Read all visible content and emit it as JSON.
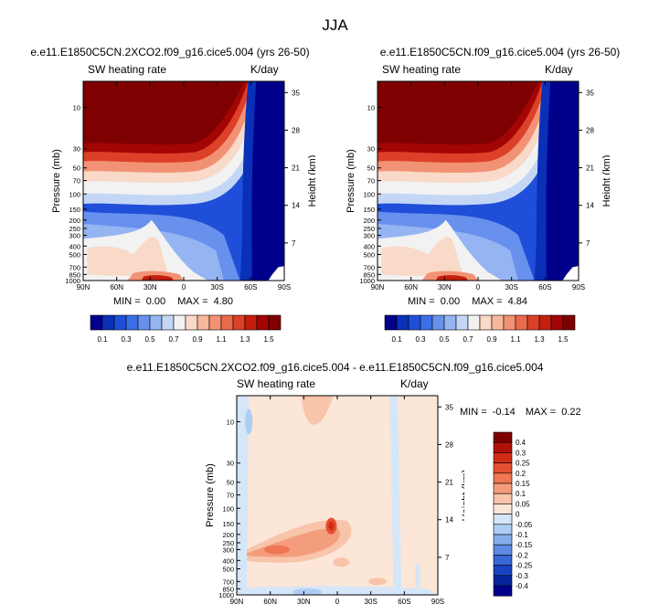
{
  "figure": {
    "title": "JJA",
    "colors": {
      "background": "#ffffff",
      "text": "#000000"
    }
  },
  "chart_data": [
    {
      "type": "heatmap",
      "title": "e.e11.E1850C5CN.2XCO2.f09_g16.cice5.004 (yrs 26-50)",
      "left_string": "SW heating rate",
      "units": "K/day",
      "ylabel": "Pressure (mb)",
      "ylabel_right": "Height (km)",
      "x_ticks": [
        "90N",
        "60N",
        "30N",
        "0",
        "30S",
        "60S",
        "90S"
      ],
      "y_ticks": [
        "10",
        "30",
        "50",
        "70",
        "100",
        "150",
        "200",
        "250",
        "300",
        "400",
        "500",
        "700",
        "850",
        "1000"
      ],
      "y_ticks_right": [
        "35",
        "28",
        "21",
        "14",
        "7"
      ],
      "stats": {
        "min_label": "MIN =",
        "min": "0.00",
        "max_label": "MAX =",
        "max": "4.80"
      },
      "colorbar": {
        "labels": [
          "0.1",
          "0.3",
          "0.5",
          "0.7",
          "0.9",
          "1.1",
          "1.3",
          "1.5"
        ],
        "colors": [
          "#00008b",
          "#0a30b8",
          "#1f4fd8",
          "#3b6fe6",
          "#6891ee",
          "#95b4f2",
          "#c3d6f6",
          "#f2f2f2",
          "#f9d9c8",
          "#f7b89e",
          "#f29274",
          "#ea6a4c",
          "#dc4028",
          "#c41e0e",
          "#a30505",
          "#7f0000"
        ]
      }
    },
    {
      "type": "heatmap",
      "title": "e.e11.E1850C5CN.f09_g16.cice5.004 (yrs 26-50)",
      "left_string": "SW heating rate",
      "units": "K/day",
      "ylabel": "Pressure (mb)",
      "ylabel_right": "Height (km)",
      "x_ticks": [
        "90N",
        "60N",
        "30N",
        "0",
        "30S",
        "60S",
        "90S"
      ],
      "y_ticks": [
        "10",
        "30",
        "50",
        "70",
        "100",
        "150",
        "200",
        "250",
        "300",
        "400",
        "500",
        "700",
        "850",
        "1000"
      ],
      "y_ticks_right": [
        "35",
        "28",
        "21",
        "14",
        "7"
      ],
      "stats": {
        "min_label": "MIN =",
        "min": "0.00",
        "max_label": "MAX =",
        "max": "4.84"
      },
      "colorbar": {
        "labels": [
          "0.1",
          "0.3",
          "0.5",
          "0.7",
          "0.9",
          "1.1",
          "1.3",
          "1.5"
        ],
        "colors": [
          "#00008b",
          "#0a30b8",
          "#1f4fd8",
          "#3b6fe6",
          "#6891ee",
          "#95b4f2",
          "#c3d6f6",
          "#f2f2f2",
          "#f9d9c8",
          "#f7b89e",
          "#f29274",
          "#ea6a4c",
          "#dc4028",
          "#c41e0e",
          "#a30505",
          "#7f0000"
        ]
      }
    },
    {
      "type": "heatmap",
      "title": "e.e11.E1850C5CN.2XCO2.f09_g16.cice5.004 - e.e11.E1850C5CN.f09_g16.cice5.004",
      "left_string": "SW heating rate",
      "units": "K/day",
      "ylabel": "Pressure (mb)",
      "ylabel_right": "Height (km)",
      "x_ticks": [
        "90N",
        "60N",
        "30N",
        "0",
        "30S",
        "60S",
        "90S"
      ],
      "y_ticks": [
        "10",
        "30",
        "50",
        "70",
        "100",
        "150",
        "200",
        "250",
        "300",
        "400",
        "500",
        "700",
        "850",
        "1000"
      ],
      "y_ticks_right": [
        "35",
        "28",
        "21",
        "14",
        "7"
      ],
      "stats": {
        "min_label": "MIN =",
        "min": "-0.14",
        "max_label": "MAX =",
        "max": "0.22"
      },
      "colorbar": {
        "labels": [
          "0.4",
          "0.3",
          "0.25",
          "0.2",
          "0.15",
          "0.1",
          "0.05",
          "0",
          "-0.05",
          "-0.1",
          "-0.15",
          "-0.2",
          "-0.25",
          "-0.3",
          "-0.4"
        ],
        "colors": [
          "#7f0000",
          "#b0120a",
          "#d12c18",
          "#e4502f",
          "#ef7753",
          "#f49d7c",
          "#f8c4aa",
          "#fce6d8",
          "#d5e6f8",
          "#aecdf3",
          "#86aeec",
          "#5d8be3",
          "#3867d6",
          "#1a43c2",
          "#08239e",
          "#00008b"
        ]
      }
    }
  ]
}
